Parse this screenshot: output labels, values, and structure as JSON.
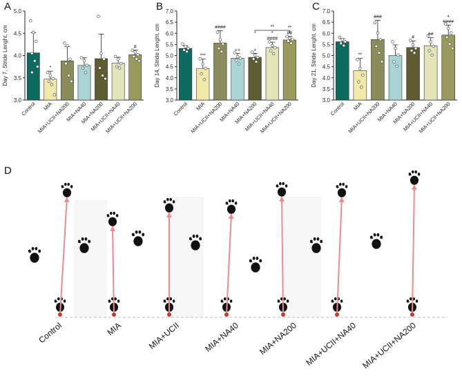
{
  "figure": {
    "panel_d_letter": "D",
    "footprints_image_note_icon": "paw-print-icon",
    "arrow_color": "#f08a8a",
    "baseline_color": "#bbbbbb"
  },
  "colors": {
    "Control": "#0d6b5f",
    "MIA": "#f2e9a6",
    "MIA+UCII+NA200": "#8c8b5a",
    "MIA+NA40": "#a9d4d6",
    "MIA+NA200": "#5f5c32",
    "MIA+UCII+NA40": "#e4e4b9",
    "MIA+UCII+NA200b": "#9a9a5c"
  },
  "chart_data": [
    {
      "type": "bar",
      "panel": "A",
      "ylabel": "Day 7, Stride Lenght, cm",
      "ylim": [
        3.0,
        5.0
      ],
      "yticks": [
        "3.0",
        "3.5",
        "4.0",
        "4.5",
        "5.0"
      ],
      "categories": [
        "Control",
        "MIA",
        "MIA+UCII+NA200",
        "MIA+NA40",
        "MIA+NA200",
        "MIA+UCII+NA40",
        "MIA+UCII+NA200"
      ],
      "values": [
        4.06,
        3.47,
        3.88,
        3.78,
        3.93,
        3.83,
        4.02
      ],
      "errors": [
        0.45,
        0.18,
        0.32,
        0.17,
        0.55,
        0.13,
        0.1
      ],
      "annotations": [
        "",
        "*",
        "",
        "",
        "",
        "",
        "#"
      ],
      "points": [
        [
          4.78,
          4.52,
          4.32,
          4.05,
          3.88,
          3.75,
          3.62
        ],
        [
          3.62,
          3.55,
          3.48,
          3.42,
          3.35,
          3.12
        ],
        [
          4.28,
          4.22,
          3.92,
          3.82,
          3.55,
          3.42
        ],
        [
          3.95,
          3.88,
          3.78,
          3.72,
          3.62
        ],
        [
          4.88,
          4.05,
          3.92,
          3.72,
          3.55,
          3.48
        ],
        [
          3.98,
          3.92,
          3.82,
          3.75,
          3.72
        ],
        [
          4.12,
          4.08,
          4.02,
          3.98,
          3.92,
          3.88
        ]
      ]
    },
    {
      "type": "bar",
      "panel": "B",
      "ylabel": "Day 14, Stride Lenght, cm",
      "ylim": [
        3.0,
        7.0
      ],
      "yticks": [
        "3.0",
        "3.5",
        "4.0",
        "4.5",
        "5.0",
        "5.5",
        "6.0",
        "6.5",
        "7.0"
      ],
      "categories": [
        "Control",
        "MIA",
        "MIA+UCII+NA200",
        "MIA+NA40",
        "MIA+NA200",
        "MIA+UCII+NA40",
        "MIA+UCII+NA200"
      ],
      "values": [
        5.32,
        4.42,
        5.56,
        4.88,
        4.92,
        5.36,
        5.7
      ],
      "errors": [
        0.12,
        0.42,
        0.56,
        0.22,
        0.18,
        0.24,
        0.16
      ],
      "annotations": [
        "",
        "***",
        "####",
        "++",
        "+",
        "*\n####",
        "**\n##"
      ],
      "bracket_label": "**",
      "bracket_from": 4,
      "bracket_to": 6,
      "points": [
        [
          5.52,
          5.4,
          5.32,
          5.25,
          5.18
        ],
        [
          4.85,
          4.62,
          4.42,
          4.18,
          3.92
        ],
        [
          6.05,
          5.72,
          5.52,
          5.32,
          5.18
        ],
        [
          5.12,
          4.95,
          4.88,
          4.78,
          4.62
        ],
        [
          5.15,
          5.02,
          4.92,
          4.85,
          4.72
        ],
        [
          5.62,
          5.45,
          5.35,
          5.22,
          5.08
        ],
        [
          5.85,
          5.78,
          5.72,
          5.65,
          5.55
        ]
      ]
    },
    {
      "type": "bar",
      "panel": "C",
      "ylabel": "Day 21, Stride Lenght, cm",
      "ylim": [
        3.0,
        7.0
      ],
      "yticks": [
        "3.0",
        "3.5",
        "4.0",
        "4.5",
        "5.0",
        "5.5",
        "6.0",
        "6.5",
        "7.0"
      ],
      "categories": [
        "Control",
        "MIA",
        "MIA+UCII+NA200",
        "MIA+NA40",
        "MIA+NA200",
        "MIA+UCII+NA40",
        "MIA+UCII+NA200"
      ],
      "values": [
        5.62,
        4.32,
        5.72,
        5.0,
        5.36,
        5.44,
        5.92
      ],
      "errors": [
        0.14,
        0.55,
        0.86,
        0.48,
        0.3,
        0.36,
        0.45
      ],
      "annotations": [
        "",
        "**",
        "###",
        "",
        "#",
        "##",
        "+\n####"
      ],
      "points": [
        [
          5.82,
          5.72,
          5.62,
          5.55,
          5.45
        ],
        [
          4.82,
          4.42,
          4.12,
          3.82,
          3.58
        ],
        [
          6.48,
          6.02,
          5.72,
          5.42,
          5.12,
          4.72
        ],
        [
          5.62,
          5.32,
          5.02,
          4.72,
          4.52
        ],
        [
          5.68,
          5.48,
          5.32,
          5.22,
          5.12
        ],
        [
          5.88,
          5.62,
          5.42,
          5.22,
          5.02
        ],
        [
          6.42,
          6.22,
          6.02,
          5.82,
          5.52,
          5.32
        ]
      ]
    }
  ],
  "panel_d": {
    "labels": [
      "Control",
      "MIA",
      "MIA+UCII",
      "MIA+NA40",
      "MIA+NA200",
      "MIA+UCII+NA40",
      "MIA+UCII+NA200"
    ]
  }
}
